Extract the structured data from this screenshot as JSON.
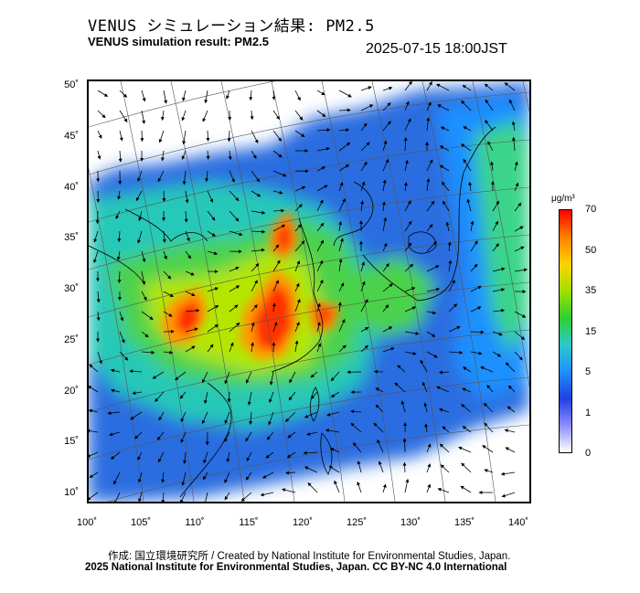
{
  "title_jp": "VENUS シミュレーション結果: PM2.5",
  "title_en": "VENUS simulation result: PM2.5",
  "timestamp": "2025-07-15 18:00JST",
  "lat_ticks": [
    {
      "label": "50˚",
      "value": 50
    },
    {
      "label": "45˚",
      "value": 45
    },
    {
      "label": "40˚",
      "value": 40
    },
    {
      "label": "35˚",
      "value": 35
    },
    {
      "label": "30˚",
      "value": 30
    },
    {
      "label": "25˚",
      "value": 25
    },
    {
      "label": "20˚",
      "value": 20
    },
    {
      "label": "15˚",
      "value": 15
    },
    {
      "label": "10˚",
      "value": 10
    }
  ],
  "lon_ticks": [
    {
      "label": "100˚",
      "value": 100
    },
    {
      "label": "105˚",
      "value": 105
    },
    {
      "label": "110˚",
      "value": 110
    },
    {
      "label": "115˚",
      "value": 115
    },
    {
      "label": "120˚",
      "value": 120
    },
    {
      "label": "125˚",
      "value": 125
    },
    {
      "label": "130˚",
      "value": 130
    },
    {
      "label": "135˚",
      "value": 135
    },
    {
      "label": "140˚",
      "value": 140
    }
  ],
  "colorbar": {
    "unit": "μg/m³",
    "ticks": [
      "70",
      "50",
      "35",
      "15",
      "5",
      "1",
      "0"
    ],
    "colors": [
      "#ff0000",
      "#ff7f00",
      "#ffd200",
      "#a0e000",
      "#2ed12e",
      "#2ec8c8",
      "#1e90ff",
      "#2040e0",
      "#8c8cff",
      "#ffffff"
    ]
  },
  "credit_jp": "作成: 国立環境研究所 / Created by National Institute for Environmental Studies, Japan.",
  "credit_en": "2025 National Institute for Environmental Studies, Japan. CC BY-NC 4.0 International"
}
